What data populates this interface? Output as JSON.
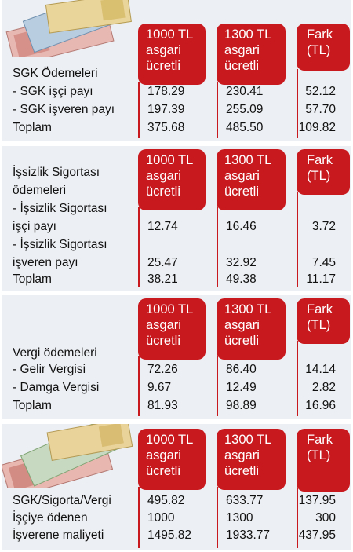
{
  "colors": {
    "accent": "#c8191f",
    "panel_bg": "#eceff3"
  },
  "header_labels": {
    "col1": [
      "1000 TL",
      "asgari",
      "ücretli"
    ],
    "col2": [
      "1300 TL",
      "asgari",
      "ücretli"
    ],
    "col3": [
      "Fark",
      "(TL)"
    ]
  },
  "sections": [
    {
      "rows": [
        {
          "label": "SGK Ödemeleri",
          "v1": "",
          "v2": "",
          "v3": ""
        },
        {
          "label": "- SGK işçi payı",
          "v1": "178.29",
          "v2": "230.41",
          "v3": "52.12"
        },
        {
          "label": "- SGK işveren payı",
          "v1": "197.39",
          "v2": "255.09",
          "v3": "57.70"
        },
        {
          "label": "Toplam",
          "v1": "375.68",
          "v2": "485.50",
          "v3": "109.82"
        }
      ]
    },
    {
      "rows": [
        {
          "label": "İşsizlik Sigortası",
          "v1": "",
          "v2": "",
          "v3": ""
        },
        {
          "label": "ödemeleri",
          "v1": "",
          "v2": "",
          "v3": ""
        },
        {
          "label": "- İşsizlik Sigortası",
          "v1": "",
          "v2": "",
          "v3": ""
        },
        {
          "label": "işçi payı",
          "v1": "12.74",
          "v2": "16.46",
          "v3": "3.72"
        },
        {
          "label": "- İşsizlik Sigortası",
          "v1": "",
          "v2": "",
          "v3": ""
        },
        {
          "label": "işveren payı",
          "v1": "25.47",
          "v2": "32.92",
          "v3": "7.45"
        },
        {
          "label": "Toplam",
          "v1": "38.21",
          "v2": "49.38",
          "v3": "11.17"
        }
      ]
    },
    {
      "rows": [
        {
          "label": "Vergi ödemeleri",
          "v1": "",
          "v2": "",
          "v3": ""
        },
        {
          "label": "- Gelir Vergisi",
          "v1": "72.26",
          "v2": "86.40",
          "v3": "14.14"
        },
        {
          "label": "- Damga Vergisi",
          "v1": "9.67",
          "v2": "12.49",
          "v3": "2.82"
        },
        {
          "label": "Toplam",
          "v1": "81.93",
          "v2": "98.89",
          "v3": "16.96"
        }
      ]
    },
    {
      "rows": [
        {
          "label": "SGK/Sigorta/Vergi",
          "v1": "495.82",
          "v2": "633.77",
          "v3": "137.95"
        },
        {
          "label": "İşçiye ödenen",
          "v1": "1000",
          "v2": "1300",
          "v3": "300"
        },
        {
          "label": "İşverene maliyeti",
          "v1": "1495.82",
          "v2": "1933.77",
          "v3": "437.95"
        }
      ]
    }
  ]
}
